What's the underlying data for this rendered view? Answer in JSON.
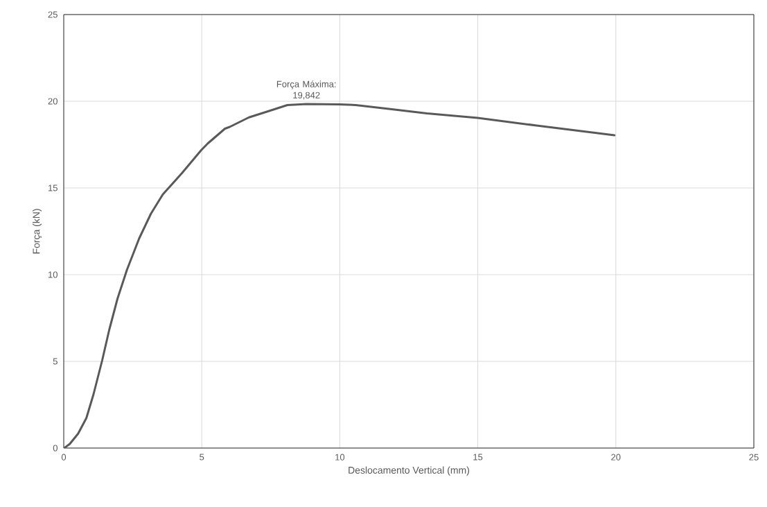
{
  "chart_data": {
    "type": "line",
    "xlabel": "Deslocamento Vertical (mm)",
    "ylabel": "Força (kN)",
    "x": [
      0.02,
      0.22,
      0.52,
      0.82,
      1.08,
      1.39,
      1.65,
      1.95,
      2.29,
      2.73,
      3.16,
      3.59,
      4.29,
      4.98,
      5.22,
      5.84,
      6.01,
      6.71,
      7.4,
      8.1,
      8.79,
      9.98,
      10.58,
      11.67,
      13.16,
      15.0,
      17.13,
      19.95
    ],
    "series": [
      {
        "color": "#595959",
        "values": [
          0.0,
          0.24,
          0.83,
          1.73,
          3.11,
          5.04,
          6.83,
          8.63,
          10.28,
          12.08,
          13.52,
          14.63,
          15.87,
          17.18,
          17.57,
          18.42,
          18.52,
          19.07,
          19.42,
          19.78,
          19.84,
          19.82,
          19.78,
          19.58,
          19.3,
          19.04,
          18.6,
          18.04
        ]
      }
    ],
    "xlim": [
      0,
      25
    ],
    "ylim": [
      0,
      25
    ],
    "xticks": [
      0,
      5,
      10,
      15,
      20,
      25
    ],
    "yticks": [
      0,
      5,
      10,
      15,
      20,
      25
    ],
    "grid": true,
    "marker": "none",
    "line_style": "solid",
    "annotations": [
      {
        "text": "Força Máxima: 19,842",
        "x": 8.79,
        "y": 19.842
      }
    ]
  }
}
